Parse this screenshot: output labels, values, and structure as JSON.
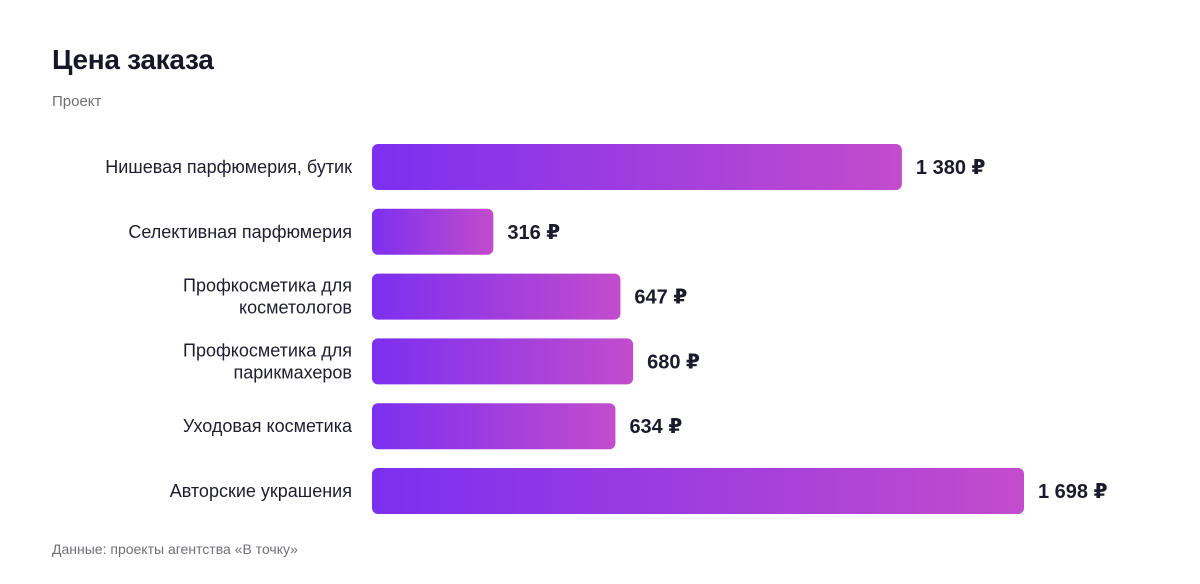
{
  "header": {
    "title": "Цена заказа",
    "subtitle": "Проект"
  },
  "footer": {
    "source": "Данные: проекты агентства «В точку»"
  },
  "colors": {
    "bar_start": "#7c2ff0",
    "bar_end": "#c34ccc",
    "text": "#1b1b2b",
    "muted": "#6f6f78"
  },
  "chart_data": {
    "type": "bar",
    "orientation": "horizontal",
    "title": "Цена заказа",
    "subtitle": "Проект",
    "categories": [
      [
        "Нишевая парфюмерия, бутик"
      ],
      [
        "Селективная парфюмерия"
      ],
      [
        "Профкосметика для",
        "косметологов"
      ],
      [
        "Профкосметика для",
        "парикмахеров"
      ],
      [
        "Уходовая косметика"
      ],
      [
        "Авторские украшения"
      ]
    ],
    "values": [
      1380,
      316,
      647,
      680,
      634,
      1698
    ],
    "value_labels": [
      "1 380 ₽",
      "316 ₽",
      "647 ₽",
      "680 ₽",
      "634 ₽",
      "1 698 ₽"
    ],
    "xlim": [
      0,
      1698
    ],
    "grid": false,
    "legend": "none"
  }
}
